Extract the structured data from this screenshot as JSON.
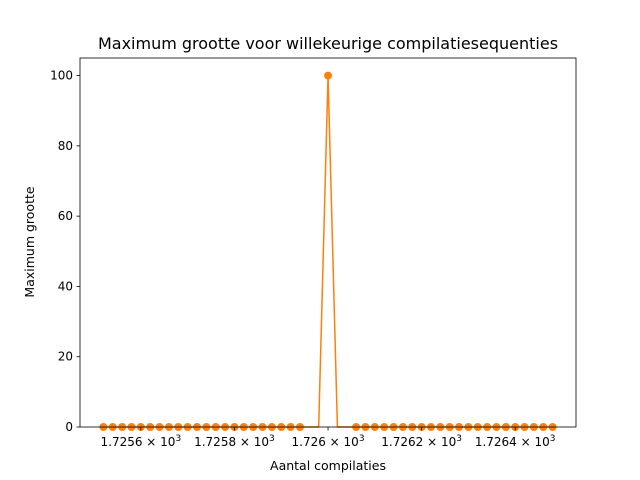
{
  "chart_data": {
    "type": "line",
    "title": "Maximum grootte voor willekeurige compilatiesequenties",
    "xlabel": "Aantal compilaties",
    "ylabel": "Maximum grootte",
    "xscale": "log",
    "xlim": [
      1725.47,
      1726.53
    ],
    "ylim": [
      0,
      105
    ],
    "grid": false,
    "color": "#ff7f0e",
    "x_ticks": [
      {
        "value": 1725.6,
        "mantissa": "1.7256",
        "base": "10",
        "exp": "3"
      },
      {
        "value": 1725.8,
        "mantissa": "1.7258",
        "base": "10",
        "exp": "3"
      },
      {
        "value": 1726.0,
        "mantissa": "1.726",
        "base": "10",
        "exp": "3"
      },
      {
        "value": 1726.2,
        "mantissa": "1.7262",
        "base": "10",
        "exp": "3"
      },
      {
        "value": 1726.4,
        "mantissa": "1.7264",
        "base": "10",
        "exp": "3"
      }
    ],
    "y_ticks": [
      {
        "value": 0,
        "label": "0"
      },
      {
        "value": 20,
        "label": "20"
      },
      {
        "value": 40,
        "label": "40"
      },
      {
        "value": 60,
        "label": "60"
      },
      {
        "value": 80,
        "label": "80"
      },
      {
        "value": 100,
        "label": "100"
      }
    ],
    "series": [
      {
        "x": [
          1725.52,
          1725.54,
          1725.56,
          1725.58,
          1725.6,
          1725.62,
          1725.64,
          1725.66,
          1725.68,
          1725.7,
          1725.72,
          1725.74,
          1725.76,
          1725.78,
          1725.8,
          1725.82,
          1725.84,
          1725.86,
          1725.88,
          1725.9,
          1725.92,
          1725.94,
          1725.96,
          1725.98,
          1726.0,
          1726.02,
          1726.04,
          1726.06,
          1726.08,
          1726.1,
          1726.12,
          1726.14,
          1726.16,
          1726.18,
          1726.2,
          1726.22,
          1726.24,
          1726.26,
          1726.28,
          1726.3,
          1726.32,
          1726.34,
          1726.36,
          1726.38,
          1726.4,
          1726.42,
          1726.44,
          1726.46,
          1726.48
        ],
        "y": [
          0,
          0,
          0,
          0,
          0,
          0,
          0,
          0,
          0,
          0,
          0,
          0,
          0,
          0,
          0,
          0,
          0,
          0,
          0,
          0,
          0,
          0,
          0,
          0,
          100,
          0,
          0,
          0,
          0,
          0,
          0,
          0,
          0,
          0,
          0,
          0,
          0,
          0,
          0,
          0,
          0,
          0,
          0,
          0,
          0,
          0,
          0,
          0,
          0
        ],
        "markers": [
          1725.52,
          1725.54,
          1725.56,
          1725.58,
          1725.6,
          1725.62,
          1725.64,
          1725.66,
          1725.68,
          1725.7,
          1725.72,
          1725.74,
          1725.76,
          1725.78,
          1725.8,
          1725.82,
          1725.84,
          1725.86,
          1725.88,
          1725.9,
          1725.92,
          1725.94,
          1726.0,
          1726.06,
          1726.08,
          1726.1,
          1726.12,
          1726.14,
          1726.16,
          1726.18,
          1726.2,
          1726.22,
          1726.24,
          1726.26,
          1726.28,
          1726.3,
          1726.32,
          1726.34,
          1726.36,
          1726.38,
          1726.4,
          1726.42,
          1726.44,
          1726.46,
          1726.48
        ]
      }
    ]
  }
}
